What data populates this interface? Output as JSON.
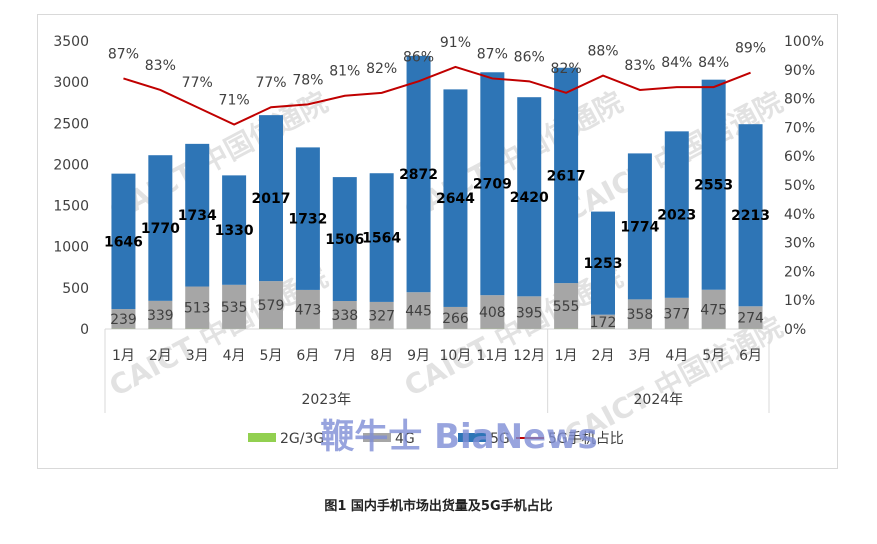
{
  "caption": "图1  国内手机市场出货量及5G手机占比",
  "watermarks": [
    "CAICT 中国信通院",
    "CAICT 中国信通院",
    "CAICT 中国信通院",
    "CAICT 中国信通院",
    "CAICT 中国信通院",
    "CAICT 中国信通院"
  ],
  "overlay_watermark": "鞭牛士 BiaNews",
  "colors": {
    "g23": "#92d050",
    "g4": "#a6a6a6",
    "g5": "#2e75b6",
    "ratio": "#c00000",
    "grid": "#d9d9d9",
    "text": "#404040"
  },
  "chart_data": {
    "type": "bar",
    "stacked": true,
    "categories": [
      "1月",
      "2月",
      "3月",
      "4月",
      "5月",
      "6月",
      "7月",
      "8月",
      "9月",
      "10月",
      "11月",
      "12月",
      "1月",
      "2月",
      "3月",
      "4月",
      "5月",
      "6月"
    ],
    "groups": [
      {
        "label": "2023年",
        "count": 12
      },
      {
        "label": "2024年",
        "count": 6
      }
    ],
    "series": [
      {
        "name": "2G/3G",
        "kind": "bar",
        "color": "#92d050",
        "values": [
          3,
          3,
          3,
          2,
          3,
          2,
          2,
          2,
          2,
          2,
          3,
          2,
          3,
          2,
          2,
          2,
          2,
          2
        ]
      },
      {
        "name": "4G",
        "kind": "bar",
        "color": "#a6a6a6",
        "values": [
          239,
          339,
          513,
          535,
          579,
          473,
          338,
          327,
          445,
          266,
          408,
          395,
          555,
          172,
          358,
          377,
          475,
          274
        ]
      },
      {
        "name": "5G",
        "kind": "bar",
        "color": "#2e75b6",
        "values": [
          1646,
          1770,
          1734,
          1330,
          2017,
          1732,
          1506,
          1564,
          2872,
          2644,
          2709,
          2420,
          2617,
          1253,
          1774,
          2023,
          2553,
          2213
        ]
      },
      {
        "name": "5G手机占比",
        "kind": "line",
        "axis": "right",
        "color": "#c00000",
        "values": [
          87,
          83,
          77,
          71,
          77,
          78,
          81,
          82,
          86,
          91,
          87,
          86,
          82,
          88,
          83,
          84,
          84,
          89
        ]
      }
    ],
    "ylim": [
      0,
      3500
    ],
    "yticks": [
      "0",
      "500",
      "1000",
      "1500",
      "2000",
      "2500",
      "3000",
      "3500"
    ],
    "y2lim": [
      0,
      100
    ],
    "y2ticks": [
      "0%",
      "10%",
      "20%",
      "30%",
      "40%",
      "50%",
      "60%",
      "70%",
      "80%",
      "90%",
      "100%"
    ],
    "legend_position": "bottom",
    "grid": false
  }
}
